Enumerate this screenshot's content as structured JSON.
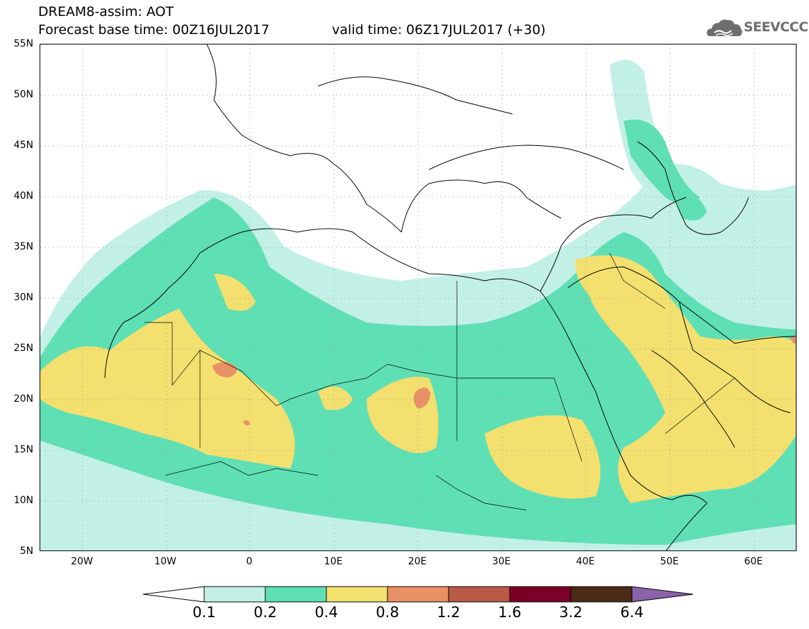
{
  "header": {
    "title_line1": "DREAM8-assim: AOT",
    "title_line2": "Forecast base time: 00Z16JUL2017",
    "valid_time": "valid time: 06Z17JUL2017 (+30)",
    "logo_text": "SEEVCCC"
  },
  "map": {
    "lat_labels": [
      "55N",
      "50N",
      "45N",
      "40N",
      "35N",
      "30N",
      "25N",
      "20N",
      "15N",
      "10N",
      "5N"
    ],
    "lon_labels": [
      "20W",
      "10W",
      "0",
      "10E",
      "20E",
      "30E",
      "40E",
      "50E",
      "60E"
    ],
    "colors": {
      "c01": "#c2f0e7",
      "c02": "#5fdfb4",
      "c04": "#f3e06f",
      "c08": "#e89066",
      "c12": "#b85a46",
      "c16": "#7b0028",
      "c32": "#4b2a16",
      "c64": "#8a63a8"
    }
  },
  "legend": {
    "labels": [
      "0.1",
      "0.2",
      "0.4",
      "0.8",
      "1.2",
      "1.6",
      "3.2",
      "6.4"
    ],
    "colors": [
      "#c2f0e7",
      "#5fdfb4",
      "#f3e06f",
      "#e89066",
      "#b85a46",
      "#7b0028",
      "#4b2a16"
    ],
    "low_arrow_color": "#ffffff",
    "high_arrow_color": "#8a63a8"
  }
}
